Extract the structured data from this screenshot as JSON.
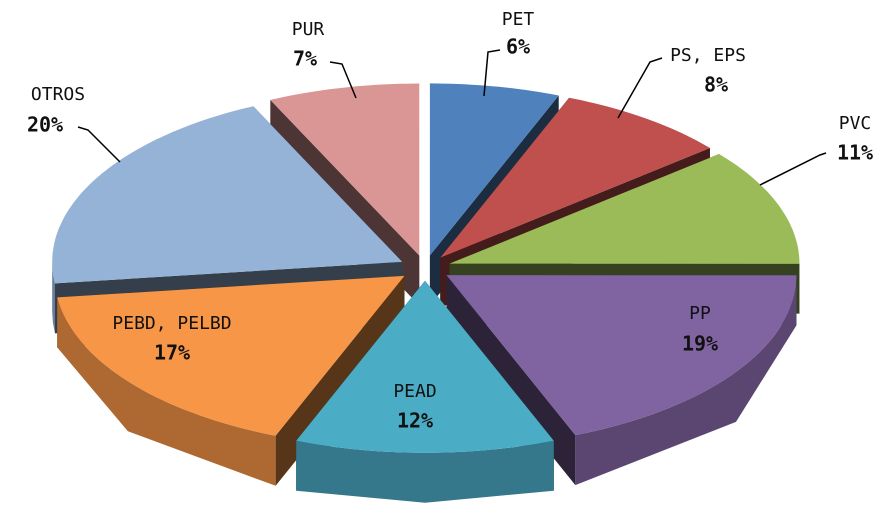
{
  "chart_data": {
    "type": "pie",
    "categories": [
      "PET",
      "PS, EPS",
      "PVC",
      "PP",
      "PEAD",
      "PEBD, PELBD",
      "OTROS",
      "PUR"
    ],
    "values": [
      6,
      8,
      11,
      19,
      12,
      17,
      20,
      7
    ],
    "value_labels": [
      "6%",
      "8%",
      "11%",
      "19%",
      "12%",
      "17%",
      "20%",
      "7%"
    ],
    "colors": [
      "#4f81bd",
      "#c0504d",
      "#9bbb59",
      "#8064a2",
      "#4bacc6",
      "#f79646",
      "#95b3d7",
      "#d99694"
    ]
  }
}
